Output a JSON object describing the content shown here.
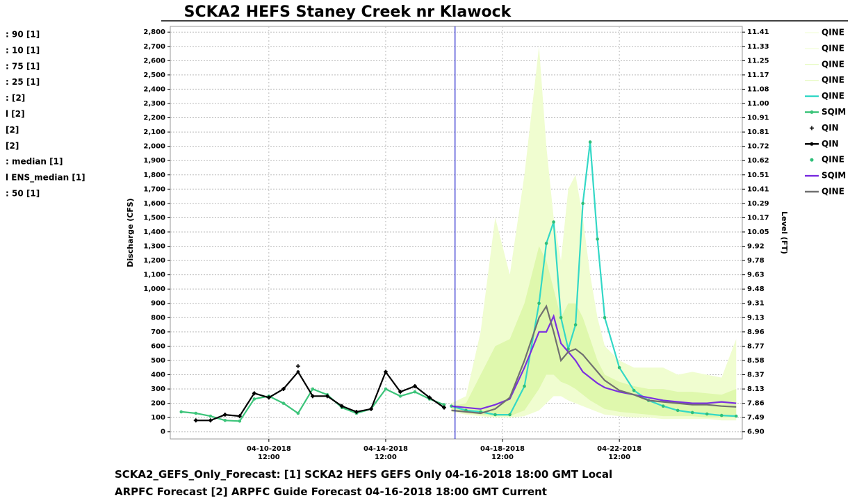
{
  "chart_data": {
    "type": "line",
    "title": "SCKA2 HEFS Staney Creek nr Klawock",
    "footer": [
      "SCKA2_GEFS_Only_Forecast: [1] SCKA2 HEFS GEFS Only 04-16-2018 18:00 GMT Local",
      "ARPFC Forecast [2] ARPFC Guide Forecast 04-16-2018 18:00 GMT Current"
    ],
    "ylabel": "Discharge (CFS)",
    "y2label": "Level (FT)",
    "xlim": [
      "2018-04-07T03:00",
      "2018-04-26T17:00"
    ],
    "xticks": [
      {
        "value": "2018-04-10T12:00",
        "label": [
          "04-10-2018",
          "12:00"
        ]
      },
      {
        "value": "2018-04-14T12:00",
        "label": [
          "04-14-2018",
          "12:00"
        ]
      },
      {
        "value": "2018-04-18T12:00",
        "label": [
          "04-18-2018",
          "12:00"
        ]
      },
      {
        "value": "2018-04-22T12:00",
        "label": [
          "04-22-2018",
          "12:00"
        ]
      }
    ],
    "forecast_time": "2018-04-16T21:00",
    "ylim": [
      -50,
      2840
    ],
    "yticks": [
      0,
      100,
      200,
      300,
      400,
      500,
      600,
      700,
      800,
      900,
      {
        "value": 1000,
        "label": "1,000"
      },
      {
        "value": 1100,
        "label": "1,100"
      },
      {
        "value": 1200,
        "label": "1,200"
      },
      {
        "value": 1300,
        "label": "1,300"
      },
      {
        "value": 1400,
        "label": "1,400"
      },
      {
        "value": 1500,
        "label": "1,500"
      },
      {
        "value": 1600,
        "label": "1,600"
      },
      {
        "value": 1700,
        "label": "1,700"
      },
      {
        "value": 1800,
        "label": "1,800"
      },
      {
        "value": 1900,
        "label": "1,900"
      },
      {
        "value": 2000,
        "label": "2,000"
      },
      {
        "value": 2100,
        "label": "2,100"
      },
      {
        "value": 2200,
        "label": "2,200"
      },
      {
        "value": 2300,
        "label": "2,300"
      },
      {
        "value": 2400,
        "label": "2,400"
      },
      {
        "value": 2500,
        "label": "2,500"
      },
      {
        "value": 2600,
        "label": "2,600"
      },
      {
        "value": 2700,
        "label": "2,700"
      },
      {
        "value": 2800,
        "label": "2,800"
      }
    ],
    "y2ticks": [
      {
        "value": 6.9,
        "label": "6.90"
      },
      {
        "value": 7.49,
        "label": "7.49"
      },
      {
        "value": 7.86,
        "label": "7.86"
      },
      {
        "value": 8.13,
        "label": "8.13"
      },
      {
        "value": 8.37,
        "label": "8.37"
      },
      {
        "value": 8.58,
        "label": "8.58"
      },
      {
        "value": 8.77,
        "label": "8.77"
      },
      {
        "value": 8.96,
        "label": "8.96"
      },
      {
        "value": 9.13,
        "label": "9.13"
      },
      {
        "value": 9.31,
        "label": "9.31"
      },
      {
        "value": 9.48,
        "label": "9.48"
      },
      {
        "value": 9.63,
        "label": "9.63"
      },
      {
        "value": 9.78,
        "label": "9.78"
      },
      {
        "value": 9.92,
        "label": "9.92"
      },
      {
        "value": 10.05,
        "label": "10.05"
      },
      {
        "value": 10.17,
        "label": "10.17"
      },
      {
        "value": 10.29,
        "label": "10.29"
      },
      {
        "value": 10.41,
        "label": "10.41"
      },
      {
        "value": 10.51,
        "label": "10.51"
      },
      {
        "value": 10.62,
        "label": "10.62"
      },
      {
        "value": 10.72,
        "label": "10.72"
      },
      {
        "value": 10.81,
        "label": "10.81"
      },
      {
        "value": 10.91,
        "label": "10.91"
      },
      {
        "value": 11.0,
        "label": "11.00"
      },
      {
        "value": 11.08,
        "label": "11.08"
      },
      {
        "value": 11.17,
        "label": "11.17"
      },
      {
        "value": 11.25,
        "label": "11.25"
      },
      {
        "value": 11.33,
        "label": "11.33"
      },
      {
        "value": 11.41,
        "label": "11.41"
      }
    ],
    "grid": true,
    "series": [
      {
        "name": "QINE",
        "tail": ": 90 [1]",
        "color": "#f0fdd0",
        "fill": "#f0fdd0",
        "line": true,
        "marker": "none",
        "x": [
          "2018-04-16T18:00",
          "2018-04-17T06:00",
          "2018-04-17T18:00",
          "2018-04-18T06:00",
          "2018-04-18T18:00",
          "2018-04-19T06:00",
          "2018-04-19T18:00",
          "2018-04-20T00:00",
          "2018-04-20T06:00",
          "2018-04-20T12:00",
          "2018-04-20T18:00",
          "2018-04-21T00:00",
          "2018-04-21T06:00",
          "2018-04-21T12:00",
          "2018-04-21T18:00",
          "2018-04-22T00:00",
          "2018-04-22T12:00",
          "2018-04-23T00:00",
          "2018-04-23T12:00",
          "2018-04-24T00:00",
          "2018-04-24T12:00",
          "2018-04-25T00:00",
          "2018-04-25T12:00",
          "2018-04-26T00:00",
          "2018-04-26T12:00"
        ],
        "values": [
          200,
          250,
          700,
          1500,
          1100,
          1800,
          2700,
          2000,
          1500,
          1200,
          1700,
          1800,
          1500,
          1100,
          800,
          600,
          500,
          450,
          450,
          450,
          400,
          420,
          400,
          380,
          650
        ]
      },
      {
        "name": "QINE",
        "tail": ": 10 [1]",
        "color": "#f0fdd0",
        "line": true,
        "marker": "none",
        "x": [
          "2018-04-16T18:00",
          "2018-04-17T06:00",
          "2018-04-17T18:00",
          "2018-04-18T06:00",
          "2018-04-18T18:00",
          "2018-04-19T06:00",
          "2018-04-19T18:00",
          "2018-04-20T00:00",
          "2018-04-20T06:00",
          "2018-04-20T12:00",
          "2018-04-20T18:00",
          "2018-04-21T00:00",
          "2018-04-21T06:00",
          "2018-04-21T12:00",
          "2018-04-21T18:00",
          "2018-04-22T00:00",
          "2018-04-22T12:00",
          "2018-04-23T00:00",
          "2018-04-23T12:00",
          "2018-04-24T00:00",
          "2018-04-24T12:00",
          "2018-04-25T00:00",
          "2018-04-25T12:00",
          "2018-04-26T00:00",
          "2018-04-26T12:00"
        ],
        "values": [
          140,
          120,
          110,
          100,
          100,
          110,
          150,
          200,
          250,
          250,
          220,
          200,
          180,
          160,
          140,
          120,
          110,
          100,
          100,
          90,
          90,
          90,
          90,
          80,
          80
        ]
      },
      {
        "name": "QINE",
        "tail": ": 75 [1]",
        "color": "#dff8ad",
        "fill": "#dff8ad",
        "line": true,
        "marker": "none",
        "x": [
          "2018-04-16T18:00",
          "2018-04-17T06:00",
          "2018-04-17T18:00",
          "2018-04-18T06:00",
          "2018-04-18T18:00",
          "2018-04-19T06:00",
          "2018-04-19T18:00",
          "2018-04-20T00:00",
          "2018-04-20T06:00",
          "2018-04-20T12:00",
          "2018-04-20T18:00",
          "2018-04-21T00:00",
          "2018-04-21T06:00",
          "2018-04-21T12:00",
          "2018-04-21T18:00",
          "2018-04-22T00:00",
          "2018-04-22T12:00",
          "2018-04-23T00:00",
          "2018-04-23T12:00",
          "2018-04-24T00:00",
          "2018-04-24T12:00",
          "2018-04-25T00:00",
          "2018-04-25T12:00",
          "2018-04-26T00:00",
          "2018-04-26T12:00"
        ],
        "values": [
          180,
          200,
          400,
          600,
          650,
          900,
          1300,
          1200,
          1000,
          800,
          900,
          900,
          800,
          650,
          500,
          400,
          350,
          320,
          300,
          300,
          280,
          280,
          270,
          260,
          300
        ]
      },
      {
        "name": "QINE",
        "tail": ": 25 [1]",
        "color": "#dff8ad",
        "line": true,
        "marker": "none",
        "x": [
          "2018-04-16T18:00",
          "2018-04-17T06:00",
          "2018-04-17T18:00",
          "2018-04-18T06:00",
          "2018-04-18T18:00",
          "2018-04-19T06:00",
          "2018-04-19T18:00",
          "2018-04-20T00:00",
          "2018-04-20T06:00",
          "2018-04-20T12:00",
          "2018-04-20T18:00",
          "2018-04-21T00:00",
          "2018-04-21T06:00",
          "2018-04-21T12:00",
          "2018-04-21T18:00",
          "2018-04-22T00:00",
          "2018-04-22T12:00",
          "2018-04-23T00:00",
          "2018-04-23T12:00",
          "2018-04-24T00:00",
          "2018-04-24T12:00",
          "2018-04-25T00:00",
          "2018-04-25T12:00",
          "2018-04-26T00:00",
          "2018-04-26T12:00"
        ],
        "values": [
          150,
          130,
          120,
          110,
          110,
          150,
          300,
          400,
          400,
          350,
          330,
          300,
          260,
          220,
          190,
          160,
          140,
          130,
          120,
          110,
          110,
          110,
          100,
          100,
          100
        ]
      },
      {
        "name": "QINE",
        "tail": ": [2]",
        "color": "#33d8c6",
        "line": true,
        "marker": "none",
        "x": [
          "2018-04-16T18:00",
          "2018-04-17T06:00",
          "2018-04-17T18:00",
          "2018-04-18T06:00",
          "2018-04-18T18:00",
          "2018-04-19T06:00",
          "2018-04-19T18:00",
          "2018-04-20T00:00",
          "2018-04-20T06:00",
          "2018-04-20T12:00",
          "2018-04-20T18:00",
          "2018-04-21T00:00",
          "2018-04-21T06:00",
          "2018-04-21T12:00",
          "2018-04-21T18:00",
          "2018-04-22T00:00",
          "2018-04-22T12:00",
          "2018-04-23T00:00",
          "2018-04-23T12:00",
          "2018-04-24T00:00",
          "2018-04-24T12:00",
          "2018-04-25T00:00",
          "2018-04-25T12:00",
          "2018-04-26T00:00",
          "2018-04-26T12:00"
        ],
        "values": [
          180,
          150,
          140,
          120,
          120,
          320,
          900,
          1320,
          1470,
          800,
          580,
          750,
          1600,
          2030,
          1350,
          800,
          450,
          290,
          220,
          180,
          150,
          135,
          125,
          115,
          110
        ]
      },
      {
        "name": "SQIM",
        "tail": "l [2]",
        "color": "#3cc47a",
        "line": true,
        "marker": "circle",
        "x": [
          "2018-04-07T12:00",
          "2018-04-08T00:00",
          "2018-04-08T12:00",
          "2018-04-09T00:00",
          "2018-04-09T12:00",
          "2018-04-10T00:00",
          "2018-04-10T12:00",
          "2018-04-11T00:00",
          "2018-04-11T12:00",
          "2018-04-12T00:00",
          "2018-04-12T12:00",
          "2018-04-13T00:00",
          "2018-04-13T12:00",
          "2018-04-14T00:00",
          "2018-04-14T12:00",
          "2018-04-15T00:00",
          "2018-04-15T12:00",
          "2018-04-16T00:00",
          "2018-04-16T12:00"
        ],
        "values": [
          140,
          130,
          110,
          80,
          75,
          230,
          250,
          200,
          130,
          300,
          260,
          170,
          130,
          160,
          300,
          250,
          280,
          230,
          190
        ]
      },
      {
        "name": "QIN",
        "tail": "[2]",
        "color": "#000000",
        "line": false,
        "marker": "plus",
        "x": [
          "2018-04-08T00:00",
          "2018-04-08T12:00",
          "2018-04-09T00:00",
          "2018-04-09T12:00",
          "2018-04-10T00:00",
          "2018-04-10T12:00",
          "2018-04-11T00:00",
          "2018-04-11T12:00",
          "2018-04-12T00:00",
          "2018-04-12T12:00",
          "2018-04-13T00:00",
          "2018-04-13T12:00",
          "2018-04-14T00:00",
          "2018-04-14T12:00",
          "2018-04-15T00:00",
          "2018-04-15T12:00",
          "2018-04-16T00:00",
          "2018-04-16T12:00"
        ],
        "values": [
          80,
          80,
          120,
          110,
          270,
          240,
          300,
          460,
          250,
          250,
          180,
          140,
          160,
          420,
          280,
          320,
          240,
          170
        ]
      },
      {
        "name": "QIN",
        "tail": "[2]",
        "color": "#000000",
        "line": true,
        "marker": "circle",
        "x": [
          "2018-04-08T00:00",
          "2018-04-08T12:00",
          "2018-04-09T00:00",
          "2018-04-09T12:00",
          "2018-04-10T00:00",
          "2018-04-10T12:00",
          "2018-04-11T00:00",
          "2018-04-11T12:00",
          "2018-04-12T00:00",
          "2018-04-12T12:00",
          "2018-04-13T00:00",
          "2018-04-13T12:00",
          "2018-04-14T00:00",
          "2018-04-14T12:00",
          "2018-04-15T00:00",
          "2018-04-15T12:00",
          "2018-04-16T00:00",
          "2018-04-16T12:00"
        ],
        "values": [
          80,
          80,
          120,
          110,
          270,
          240,
          300,
          420,
          250,
          250,
          180,
          140,
          160,
          420,
          280,
          320,
          240,
          170
        ]
      },
      {
        "name": "QINE",
        "tail": ": median [1]",
        "color": "#2fbf7a",
        "line": false,
        "marker": "circle",
        "x": [
          "2018-04-16T18:00",
          "2018-04-17T06:00",
          "2018-04-17T18:00",
          "2018-04-18T06:00",
          "2018-04-18T18:00",
          "2018-04-19T06:00",
          "2018-04-19T18:00",
          "2018-04-20T00:00",
          "2018-04-20T06:00",
          "2018-04-20T12:00",
          "2018-04-20T18:00",
          "2018-04-21T00:00",
          "2018-04-21T06:00",
          "2018-04-21T12:00",
          "2018-04-21T18:00",
          "2018-04-22T00:00",
          "2018-04-22T12:00",
          "2018-04-23T00:00",
          "2018-04-23T12:00",
          "2018-04-24T00:00",
          "2018-04-24T12:00",
          "2018-04-25T00:00",
          "2018-04-25T12:00",
          "2018-04-26T00:00",
          "2018-04-26T12:00"
        ],
        "values": [
          180,
          150,
          140,
          120,
          120,
          320,
          900,
          1320,
          1470,
          800,
          580,
          750,
          1600,
          2030,
          1350,
          800,
          450,
          290,
          220,
          180,
          150,
          135,
          125,
          115,
          110
        ]
      },
      {
        "name": "SQIM",
        "tail": "l ENS_median [1]",
        "color": "#7b2fe0",
        "line": true,
        "marker": "none",
        "x": [
          "2018-04-16T18:00",
          "2018-04-17T06:00",
          "2018-04-17T18:00",
          "2018-04-18T06:00",
          "2018-04-18T18:00",
          "2018-04-19T06:00",
          "2018-04-19T18:00",
          "2018-04-20T00:00",
          "2018-04-20T06:00",
          "2018-04-20T12:00",
          "2018-04-20T18:00",
          "2018-04-21T00:00",
          "2018-04-21T06:00",
          "2018-04-21T12:00",
          "2018-04-21T18:00",
          "2018-04-22T00:00",
          "2018-04-22T12:00",
          "2018-04-23T00:00",
          "2018-04-23T12:00",
          "2018-04-24T00:00",
          "2018-04-24T12:00",
          "2018-04-25T00:00",
          "2018-04-25T12:00",
          "2018-04-26T00:00",
          "2018-04-26T12:00"
        ],
        "values": [
          180,
          170,
          160,
          190,
          230,
          450,
          700,
          700,
          810,
          620,
          560,
          500,
          420,
          380,
          340,
          310,
          280,
          260,
          240,
          220,
          210,
          200,
          200,
          210,
          200
        ]
      },
      {
        "name": "QINE",
        "tail": ": 50 [1]",
        "color": "#707070",
        "line": true,
        "marker": "none",
        "x": [
          "2018-04-16T18:00",
          "2018-04-17T06:00",
          "2018-04-17T18:00",
          "2018-04-18T06:00",
          "2018-04-18T18:00",
          "2018-04-19T06:00",
          "2018-04-19T18:00",
          "2018-04-20T00:00",
          "2018-04-20T06:00",
          "2018-04-20T12:00",
          "2018-04-20T18:00",
          "2018-04-21T00:00",
          "2018-04-21T06:00",
          "2018-04-21T12:00",
          "2018-04-21T18:00",
          "2018-04-22T00:00",
          "2018-04-22T12:00",
          "2018-04-23T00:00",
          "2018-04-23T12:00",
          "2018-04-24T00:00",
          "2018-04-24T12:00",
          "2018-04-25T00:00",
          "2018-04-25T12:00",
          "2018-04-26T00:00",
          "2018-04-26T12:00"
        ],
        "values": [
          150,
          140,
          130,
          160,
          240,
          500,
          800,
          880,
          700,
          500,
          560,
          580,
          540,
          480,
          420,
          360,
          290,
          260,
          220,
          210,
          200,
          190,
          190,
          180,
          175
        ]
      }
    ]
  }
}
